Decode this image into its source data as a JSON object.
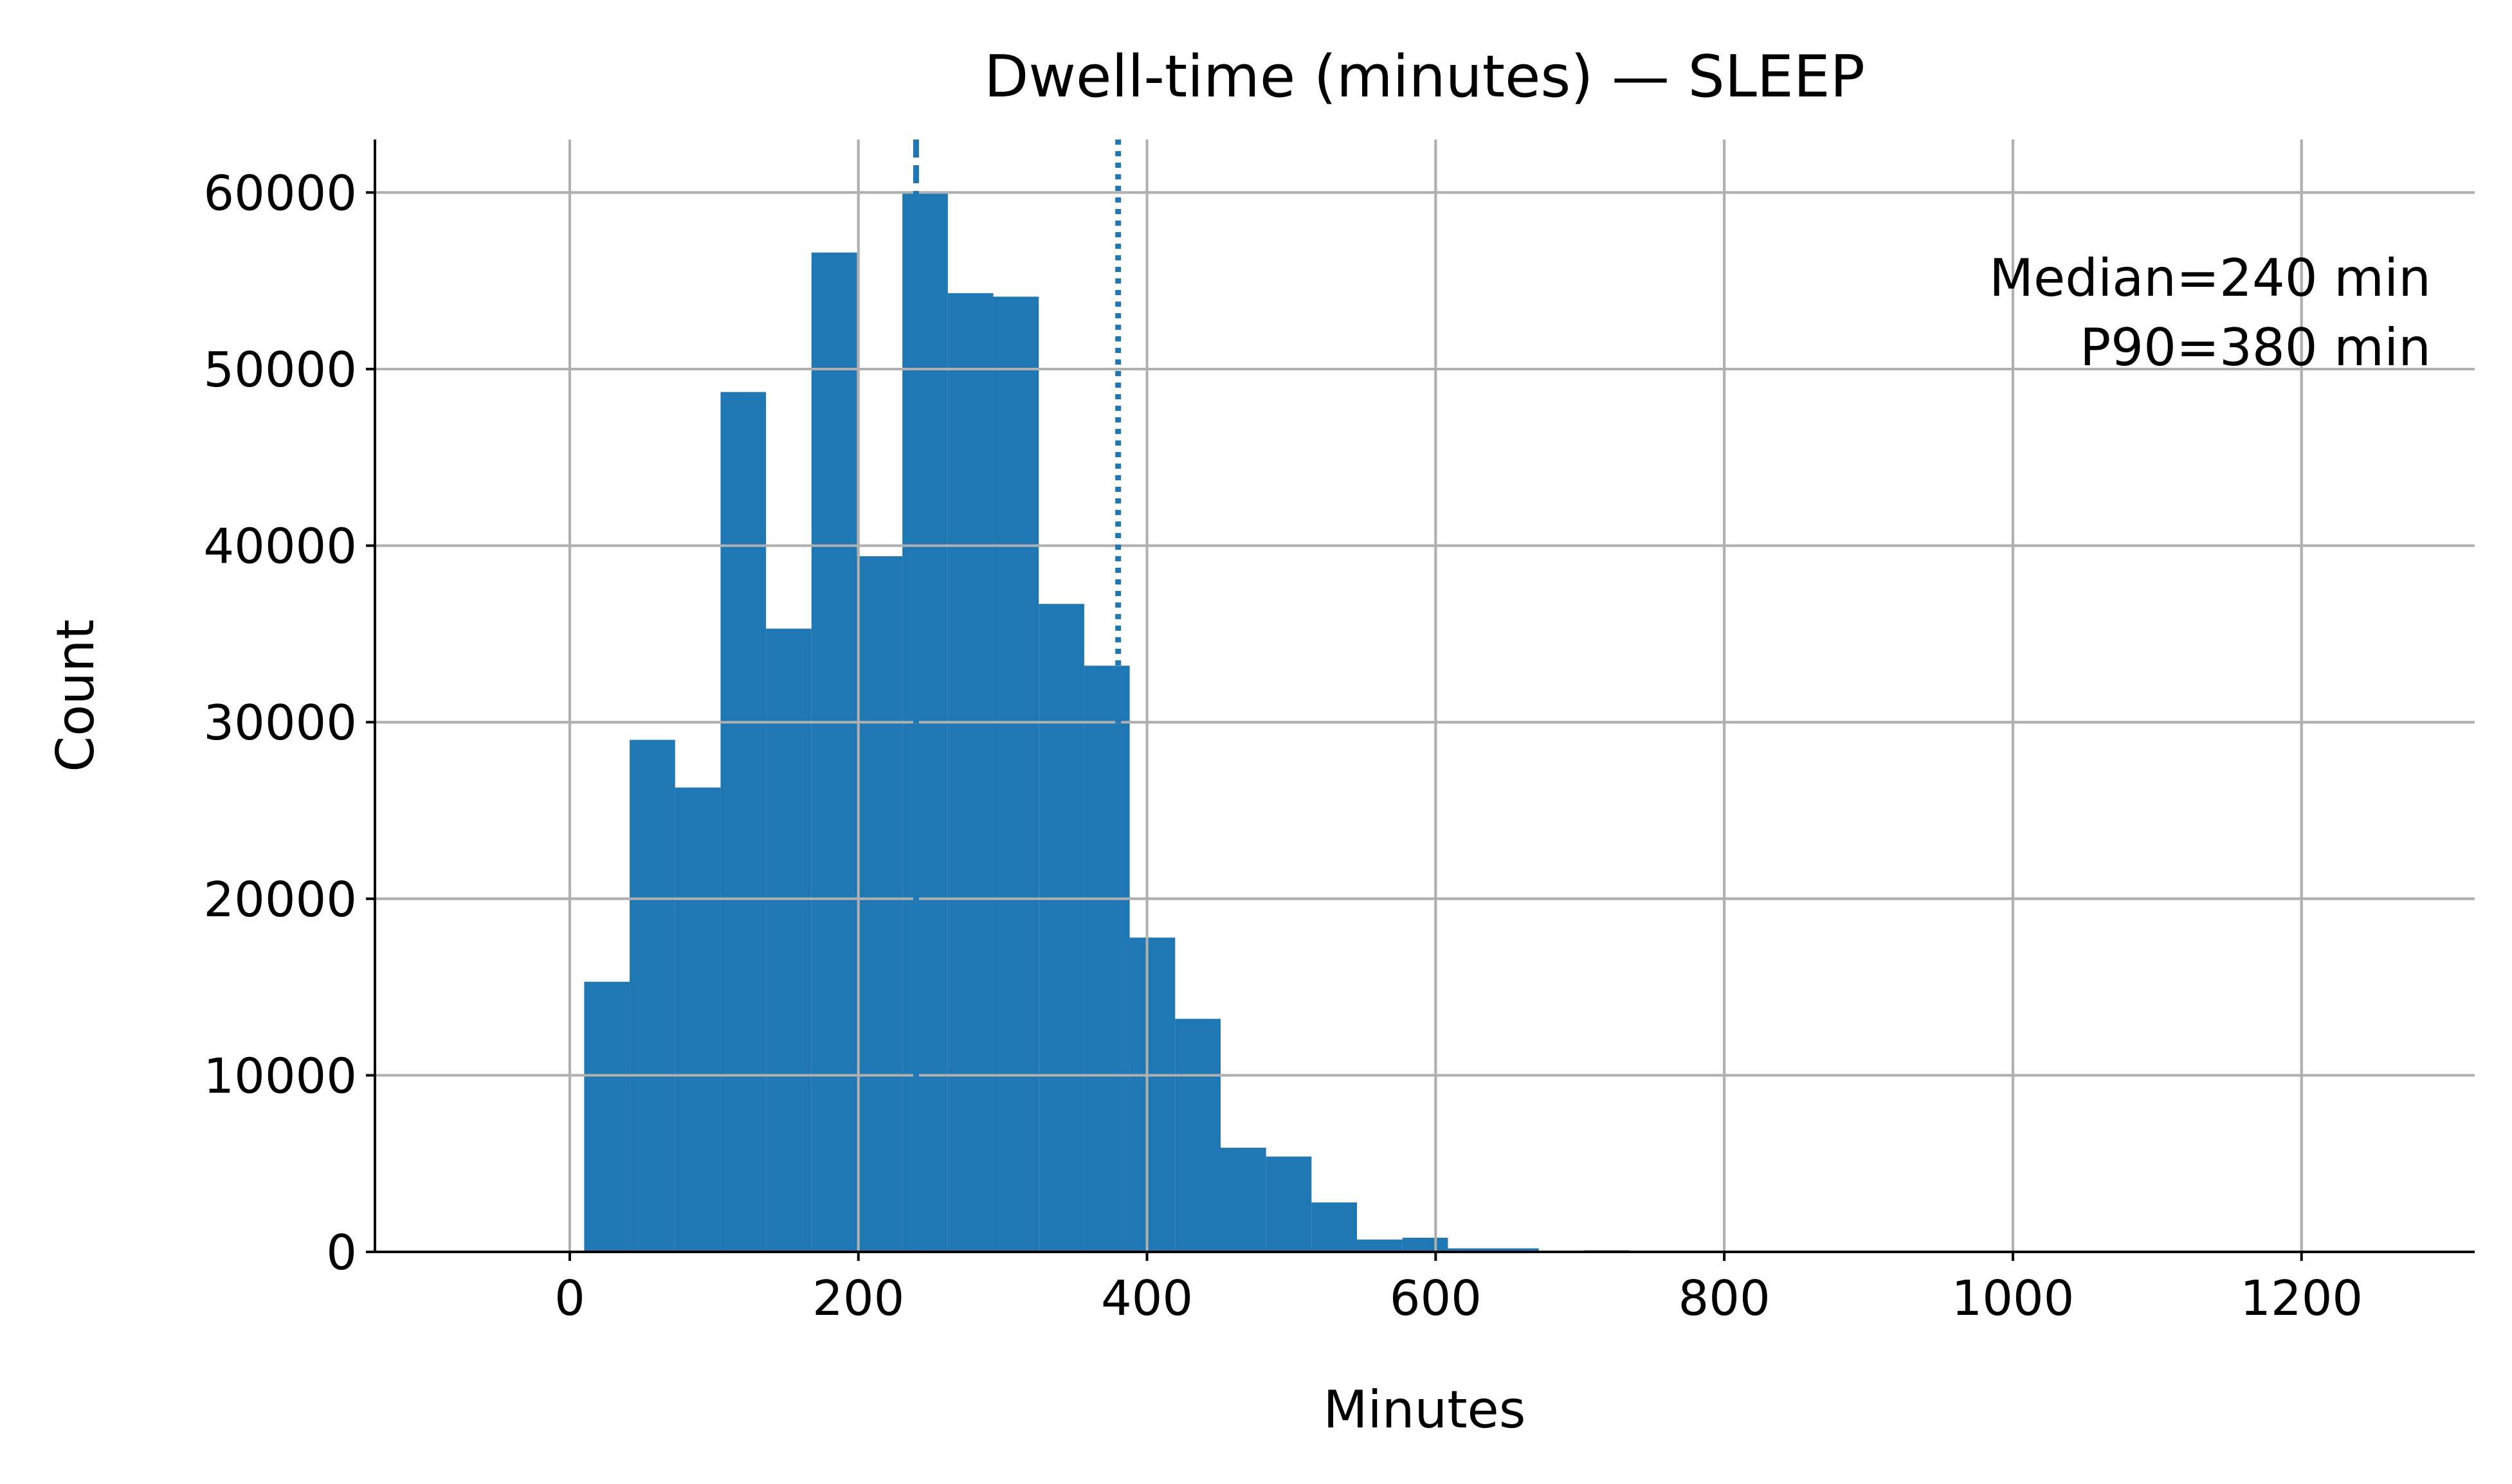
{
  "chart_data": {
    "type": "bar",
    "title": "Dwell-time (minutes) — SLEEP",
    "xlabel": "Minutes",
    "ylabel": "Count",
    "xlim": [
      -135,
      1320
    ],
    "ylim": [
      0,
      63000
    ],
    "xticks": [
      0,
      200,
      400,
      600,
      800,
      1000,
      1200
    ],
    "yticks": [
      0,
      10000,
      20000,
      30000,
      40000,
      50000,
      60000
    ],
    "grid": true,
    "bar_color": "#1f77b4",
    "grid_color": "#b0b0b0",
    "bins": [
      {
        "x0": 10,
        "x1": 41.5,
        "count": 15300
      },
      {
        "x0": 41.5,
        "x1": 73,
        "count": 29000
      },
      {
        "x0": 73,
        "x1": 104.5,
        "count": 26300
      },
      {
        "x0": 104.5,
        "x1": 136,
        "count": 48700
      },
      {
        "x0": 136,
        "x1": 167.5,
        "count": 35300
      },
      {
        "x0": 167.5,
        "x1": 199,
        "count": 56600
      },
      {
        "x0": 199,
        "x1": 230.5,
        "count": 39400
      },
      {
        "x0": 230.5,
        "x1": 262,
        "count": 60000
      },
      {
        "x0": 262,
        "x1": 293.5,
        "count": 54300
      },
      {
        "x0": 293.5,
        "x1": 325,
        "count": 54100
      },
      {
        "x0": 325,
        "x1": 356.5,
        "count": 36700
      },
      {
        "x0": 356.5,
        "x1": 388,
        "count": 33200
      },
      {
        "x0": 388,
        "x1": 419.5,
        "count": 17800
      },
      {
        "x0": 419.5,
        "x1": 451,
        "count": 13200
      },
      {
        "x0": 451,
        "x1": 482.5,
        "count": 5900
      },
      {
        "x0": 482.5,
        "x1": 514,
        "count": 5400
      },
      {
        "x0": 514,
        "x1": 545.5,
        "count": 2800
      },
      {
        "x0": 545.5,
        "x1": 577,
        "count": 700
      },
      {
        "x0": 577,
        "x1": 608.5,
        "count": 800
      },
      {
        "x0": 608.5,
        "x1": 640,
        "count": 200
      },
      {
        "x0": 640,
        "x1": 671.5,
        "count": 200
      },
      {
        "x0": 671.5,
        "x1": 703,
        "count": 30
      },
      {
        "x0": 703,
        "x1": 734.5,
        "count": 90
      },
      {
        "x0": 734.5,
        "x1": 766,
        "count": 20
      }
    ],
    "reference_lines": [
      {
        "label": "Median",
        "x": 240,
        "style": "dashed"
      },
      {
        "label": "P90",
        "x": 380,
        "style": "dotted"
      }
    ],
    "annotations": [
      "Median=240 min",
      "P90=380 min"
    ]
  }
}
